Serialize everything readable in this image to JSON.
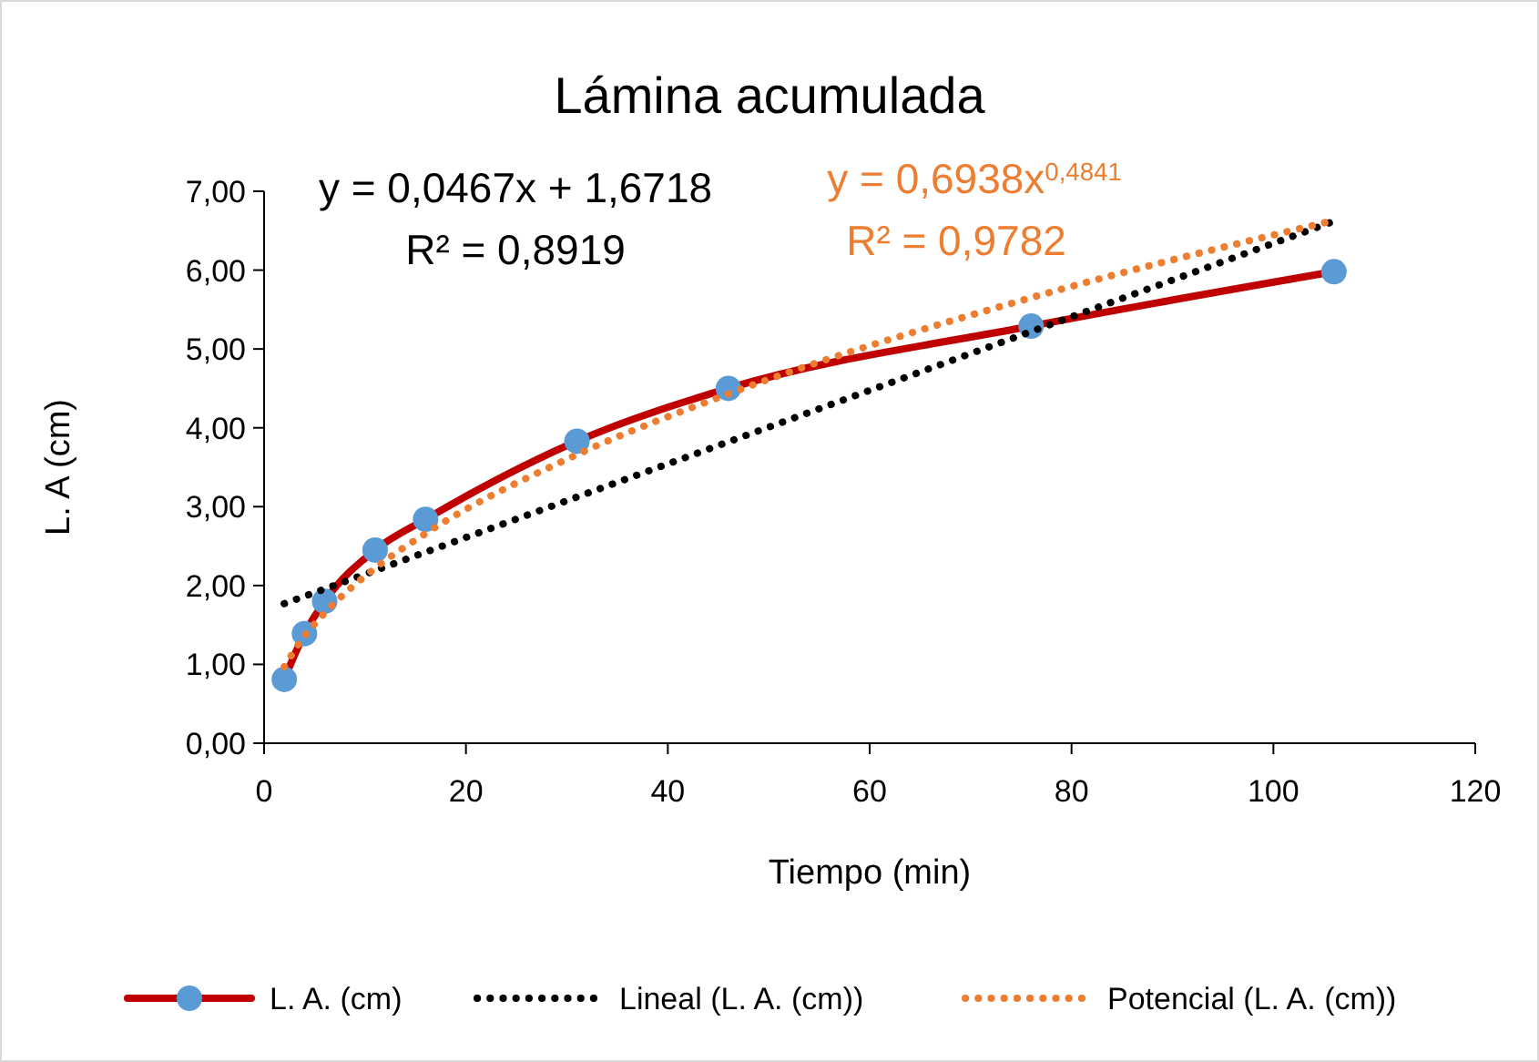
{
  "chart_data": {
    "type": "line",
    "title": "Lámina acumulada",
    "xlabel": "Tiempo (min)",
    "ylabel": "L. A (cm)",
    "xlim": [
      0,
      120
    ],
    "xticks": [
      0,
      20,
      40,
      60,
      80,
      100,
      120
    ],
    "ylim": [
      0,
      7
    ],
    "yticks": [
      {
        "value": 0,
        "label": "0,00"
      },
      {
        "value": 1,
        "label": "1,00"
      },
      {
        "value": 2,
        "label": "2,00"
      },
      {
        "value": 3,
        "label": "3,00"
      },
      {
        "value": 4,
        "label": "4,00"
      },
      {
        "value": 5,
        "label": "5,00"
      },
      {
        "value": 6,
        "label": "6,00"
      },
      {
        "value": 7,
        "label": "7,00"
      }
    ],
    "grid": false,
    "legend": "bottom",
    "series": [
      {
        "name": "L. A. (cm)",
        "color": "#c00000",
        "marker": "circle",
        "line_style": "solid",
        "x": [
          2,
          4,
          6,
          11,
          16,
          31,
          46,
          76,
          106
        ],
        "values": [
          0.81,
          1.39,
          1.8,
          2.45,
          2.84,
          3.83,
          4.5,
          5.29,
          5.98
        ]
      },
      {
        "name": "Lineal (L. A. (cm))",
        "color": "#000000",
        "marker": "none",
        "line_style": "dotted",
        "x": [
          2,
          106
        ],
        "values": [
          1.77,
          6.62
        ]
      },
      {
        "name": "Potencial (L. A. (cm))",
        "color": "#ed7d31",
        "marker": "none",
        "line_style": "dotted",
        "x": [
          2,
          4,
          6,
          11,
          16,
          31,
          46,
          76,
          106
        ],
        "values": [
          0.97,
          1.36,
          1.65,
          2.22,
          2.66,
          3.66,
          4.43,
          5.65,
          6.63
        ]
      }
    ],
    "annotations": [
      "y = 0,0467x + 1,6718",
      "R² = 0,8919",
      "y = 0,6938x$^{0,4841}$",
      "R² = 0,9782"
    ]
  }
}
